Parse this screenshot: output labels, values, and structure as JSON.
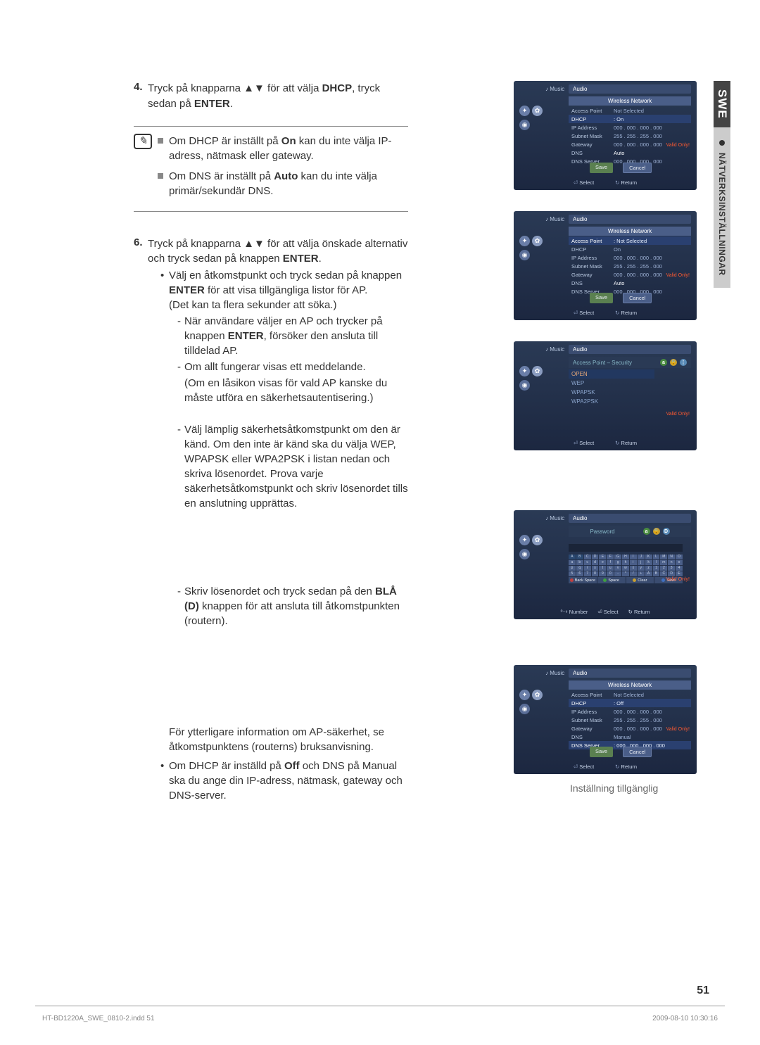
{
  "sidebar": {
    "lang": "SWE",
    "section": "NÄTVERKSINSTÄLLNINGAR"
  },
  "step4": {
    "num": "4.",
    "text_pre": "Tryck på knapparna ▲▼ för att välja ",
    "text_b1": "DHCP",
    "text_mid": ", tryck sedan på ",
    "text_b2": "ENTER",
    "text_post": "."
  },
  "note": {
    "item1_pre": "Om DHCP är inställt på ",
    "item1_b": "On",
    "item1_post": " kan du inte välja IP-adress, nätmask eller gateway.",
    "item2_pre": "Om DNS är inställt på ",
    "item2_b": "Auto",
    "item2_post": " kan du inte välja primär/sekundär DNS."
  },
  "step6": {
    "num": "6.",
    "text_pre": "Tryck på knapparna ▲▼ för att välja önskade alternativ och tryck sedan på knappen ",
    "text_b": "ENTER",
    "text_post": "."
  },
  "bullet1": {
    "line1_pre": "Välj en åtkomstpunkt och tryck sedan på knappen ",
    "line1_b": "ENTER",
    "line1_post": " för att visa tillgängliga listor för AP.",
    "line2": "(Det kan ta flera sekunder att söka.)"
  },
  "sub1": {
    "line1_pre": "När användare väljer en AP och trycker på knappen ",
    "line1_b": "ENTER",
    "line1_post": ", försöker den ansluta till tilldelad AP."
  },
  "sub2": {
    "line1": "Om allt fungerar visas ett meddelande.",
    "line2": "(Om en låsikon visas för vald AP kanske du måste utföra en säkerhetsautentisering.)"
  },
  "sub3": {
    "line1": "Välj lämplig säkerhetsåtkomstpunkt om den är känd. Om den inte är känd ska du välja WEP, WPAPSK eller WPA2PSK i listan nedan och skriva lösenordet. Prova varje säkerhetsåtkomstpunkt och skriv lösenordet tills en anslutning upprättas."
  },
  "sub4": {
    "line1_pre": "Skriv lösenordet och tryck sedan på den ",
    "line1_b": "BLÅ (D)",
    "line1_post": " knappen för att ansluta till åtkomstpunkten (routern)."
  },
  "extra": {
    "line": "För ytterligare information om AP-säkerhet, se åtkomstpunktens (routerns) bruksanvisning."
  },
  "bullet2": {
    "line_pre": "Om DHCP är inställd på ",
    "line_b": "Off",
    "line_post": " och DNS på Manual ska du ange din IP-adress, nätmask, gateway och DNS-server."
  },
  "caption5": "Inställning tillgänglig",
  "panels": {
    "common": {
      "music": "Music",
      "audio": "Audio",
      "wireless": "Wireless Network",
      "select": "Select",
      "return": "Return",
      "valid": "Valid Only!",
      "save": "Save",
      "cancel": "Cancel"
    },
    "p1": {
      "rows": [
        {
          "label": "Access Point",
          "value": "Not Selected"
        },
        {
          "label": "DHCP",
          "value": "On",
          "hi": true
        },
        {
          "label": "IP Address",
          "value": "000 . 000 . 000 . 000"
        },
        {
          "label": "Subnet Mask",
          "value": "255 . 255 . 255 . 000"
        },
        {
          "label": "Gateway",
          "value": "000 . 000 . 000 . 000"
        },
        {
          "label": "DNS",
          "value": "Auto",
          "white": true
        },
        {
          "label": "DNS Server",
          "value": "000 . 000 . 000 . 000"
        }
      ]
    },
    "p2": {
      "rows": [
        {
          "label": "Access Point",
          "value": "Not Selected",
          "hi": true
        },
        {
          "label": "DHCP",
          "value": "On"
        },
        {
          "label": "IP Address",
          "value": "000 . 000 . 000 . 000"
        },
        {
          "label": "Subnet Mask",
          "value": "255 . 255 . 255 . 000"
        },
        {
          "label": "Gateway",
          "value": "000 . 000 . 000 . 000"
        },
        {
          "label": "DNS",
          "value": "Auto",
          "white": true
        },
        {
          "label": "DNS Server",
          "value": "000 . 000 . 000 . 000"
        }
      ]
    },
    "p3": {
      "title": "Access Point – Security",
      "items": [
        "OPEN",
        "WEP",
        "WPAPSK",
        "WPA2PSK"
      ]
    },
    "p4": {
      "title": "Password",
      "number": "Number"
    },
    "p5": {
      "rows": [
        {
          "label": "Access Point",
          "value": "Not Selected"
        },
        {
          "label": "DHCP",
          "value": "Off",
          "hi": true
        },
        {
          "label": "IP Address",
          "value": "000 . 000 . 000 . 000"
        },
        {
          "label": "Subnet Mask",
          "value": "255 . 255 . 255 . 000"
        },
        {
          "label": "Gateway",
          "value": "000 . 000 . 000 . 000"
        },
        {
          "label": "DNS",
          "value": "Manual"
        },
        {
          "label": "DNS Server",
          "value": "000 . 000 . 000 . 000",
          "hi": true
        }
      ]
    }
  },
  "page_num": "51",
  "footer_left": "HT-BD1220A_SWE_0810-2.indd   51",
  "footer_right": "2009-08-10   10:30:16"
}
